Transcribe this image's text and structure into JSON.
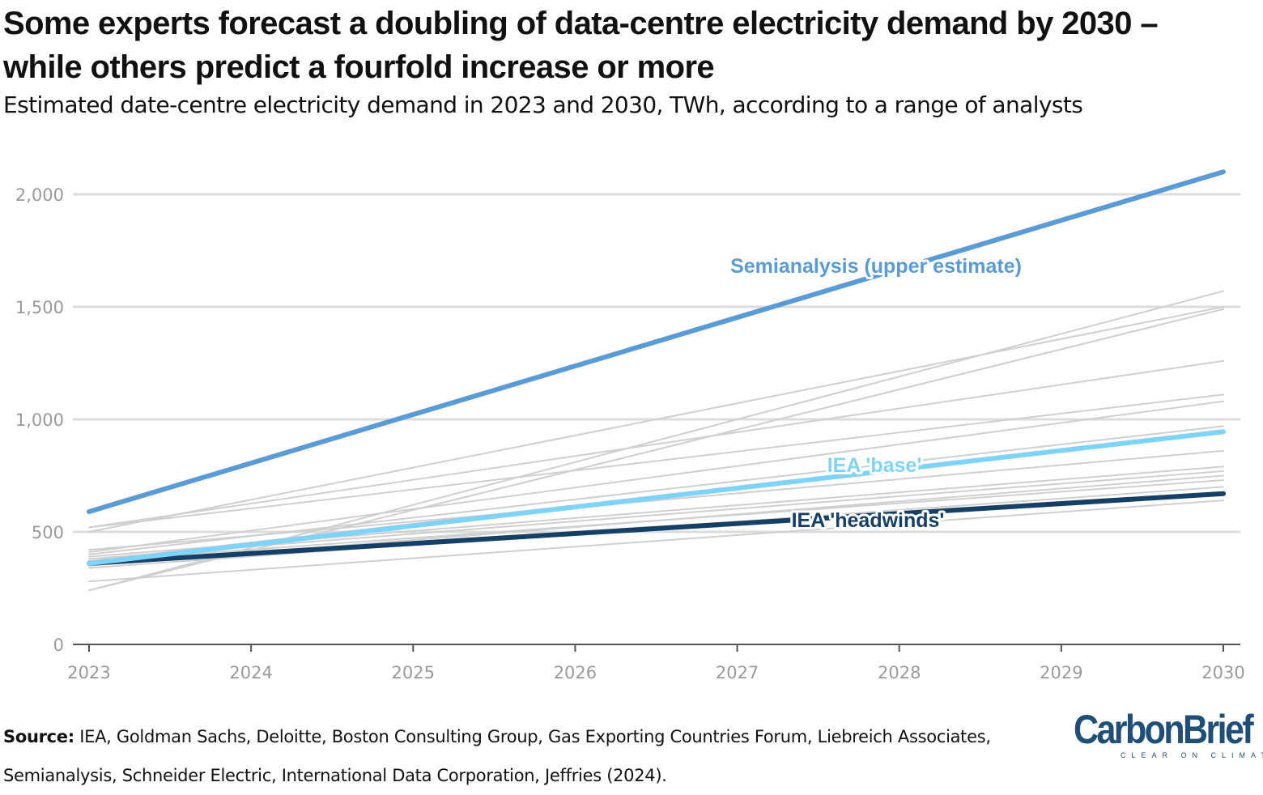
{
  "title_line1": "Some experts forecast a doubling of data-centre electricity demand by 2030 –",
  "title_line2": "while others predict a fourfold increase or more",
  "subtitle": "Estimated date-centre electricity demand in 2023 and 2030, TWh, according to a range of analysts",
  "source_label": "Source:",
  "source_text": " IEA, Goldman Sachs, Deloitte, Boston Consulting Group, Gas Exporting Countries Forum, Liebreich Associates, Semianalysis, Schneider Electric, International Data Corporation, Jeffries (2024).",
  "logo": {
    "name": "CarbonBrief",
    "tagline": "CLEAR ON CLIMATE"
  },
  "colors": {
    "grey": "#cfcfcf",
    "semianalysis": "#5b9bd5",
    "iea_base": "#7fd3f7",
    "iea_headwinds": "#163f66",
    "gridline": "#dcdcdc",
    "axis": "#555555"
  },
  "chart_data": {
    "type": "line",
    "title": "Some experts forecast a doubling of data-centre electricity demand by 2030 – while others predict a fourfold increase or more",
    "subtitle": "Estimated date-centre electricity demand in 2023 and 2030, TWh, according to a range of analysts",
    "xlabel": "",
    "ylabel": "",
    "x_ticks": [
      "2023",
      "2024",
      "2025",
      "2026",
      "2027",
      "2028",
      "2029",
      "2030"
    ],
    "y_ticks": [
      0,
      500,
      1000,
      1500,
      2000
    ],
    "y_tick_labels": [
      "0",
      "500",
      "1,000",
      "1,500",
      "2,000"
    ],
    "xlim": [
      2023,
      2030
    ],
    "ylim": [
      0,
      2000
    ],
    "grid": "horizontal",
    "legend": "none",
    "highlighted_series": [
      {
        "name": "Semianalysis (upper estimate)",
        "x": [
          2023,
          2030
        ],
        "y": [
          590,
          2100
        ],
        "color": "#5b9bd5"
      },
      {
        "name": "IEA 'base'",
        "x": [
          2023,
          2030
        ],
        "y": [
          360,
          945
        ],
        "color": "#7fd3f7"
      },
      {
        "name": "IEA 'headwinds'",
        "x": [
          2023,
          2030
        ],
        "y": [
          360,
          670
        ],
        "color": "#163f66"
      }
    ],
    "other_series": [
      {
        "x": [
          2023,
          2030
        ],
        "y": [
          240,
          1570
        ]
      },
      {
        "x": [
          2023,
          2030
        ],
        "y": [
          240,
          1490
        ]
      },
      {
        "x": [
          2023,
          2030
        ],
        "y": [
          500,
          1500
        ]
      },
      {
        "x": [
          2023,
          2030
        ],
        "y": [
          520,
          1260
        ]
      },
      {
        "x": [
          2023,
          2030
        ],
        "y": [
          520,
          1110
        ]
      },
      {
        "x": [
          2023,
          2030
        ],
        "y": [
          410,
          1080
        ]
      },
      {
        "x": [
          2023,
          2030
        ],
        "y": [
          400,
          970
        ]
      },
      {
        "x": [
          2023,
          2030
        ],
        "y": [
          370,
          950
        ]
      },
      {
        "x": [
          2023,
          2030
        ],
        "y": [
          420,
          860
        ]
      },
      {
        "x": [
          2023,
          2030
        ],
        "y": [
          390,
          790
        ]
      },
      {
        "x": [
          2023,
          2030
        ],
        "y": [
          380,
          770
        ]
      },
      {
        "x": [
          2023,
          2030
        ],
        "y": [
          350,
          750
        ]
      },
      {
        "x": [
          2023,
          2030
        ],
        "y": [
          370,
          730
        ]
      },
      {
        "x": [
          2023,
          2030
        ],
        "y": [
          340,
          700
        ]
      },
      {
        "x": [
          2023,
          2030
        ],
        "y": [
          280,
          640
        ]
      }
    ]
  }
}
